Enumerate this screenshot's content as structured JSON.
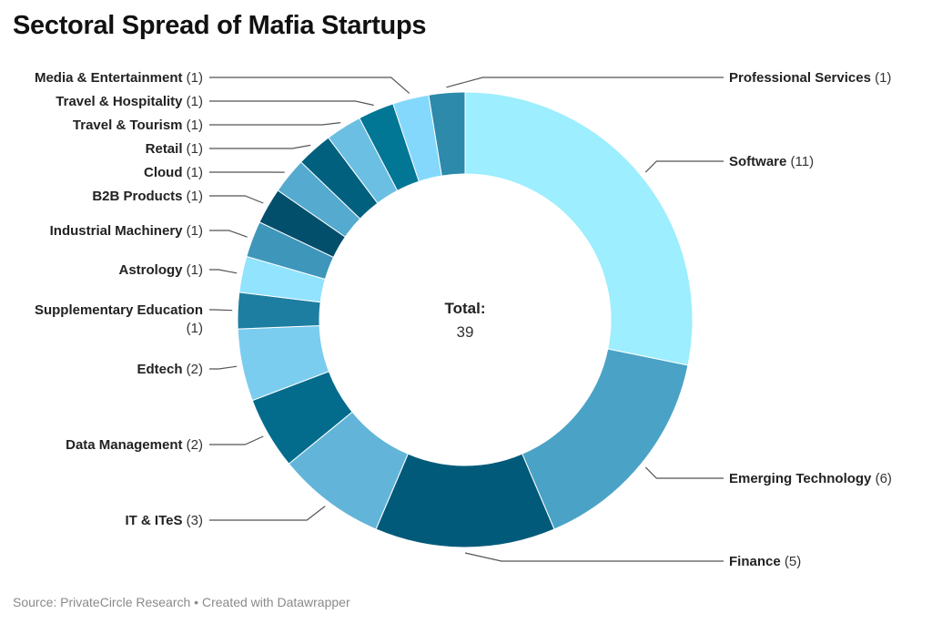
{
  "chart_data": {
    "type": "pie",
    "variant": "donut",
    "title": "Sectoral Spread of Mafia Startups",
    "center_label": "Total:",
    "center_value": "39",
    "total": 39,
    "slices": [
      {
        "label": "Software",
        "value": 11,
        "color": "#9deefe",
        "side": "right"
      },
      {
        "label": "Emerging Technology",
        "value": 6,
        "color": "#4aa3c6",
        "side": "right"
      },
      {
        "label": "Finance",
        "value": 5,
        "color": "#025a7a",
        "side": "right"
      },
      {
        "label": "IT & ITeS",
        "value": 3,
        "color": "#62b5d9",
        "side": "left"
      },
      {
        "label": "Data Management",
        "value": 2,
        "color": "#036b8c",
        "side": "left"
      },
      {
        "label": "Edtech",
        "value": 2,
        "color": "#7bcdf0",
        "side": "left"
      },
      {
        "label": "Supplementary Education",
        "value": 1,
        "color": "#1e7ea1",
        "side": "left"
      },
      {
        "label": "Astrology",
        "value": 1,
        "color": "#91e3fe",
        "side": "left"
      },
      {
        "label": "Industrial Machinery",
        "value": 1,
        "color": "#3e96ba",
        "side": "left"
      },
      {
        "label": "B2B Products",
        "value": 1,
        "color": "#024f6c",
        "side": "left"
      },
      {
        "label": "Cloud",
        "value": 1,
        "color": "#55aacf",
        "side": "left"
      },
      {
        "label": "Retail",
        "value": 1,
        "color": "#02607f",
        "side": "left"
      },
      {
        "label": "Travel & Tourism",
        "value": 1,
        "color": "#6bbfe2",
        "side": "left"
      },
      {
        "label": "Travel & Hospitality",
        "value": 1,
        "color": "#027695",
        "side": "left"
      },
      {
        "label": "Media & Entertainment",
        "value": 1,
        "color": "#84d8fb",
        "side": "left"
      },
      {
        "label": "Professional Services",
        "value": 1,
        "color": "#2d8aab",
        "side": "right"
      }
    ],
    "legend": "none (direct labels)"
  },
  "footer": "Source: PrivateCircle Research • Created with Datawrapper"
}
